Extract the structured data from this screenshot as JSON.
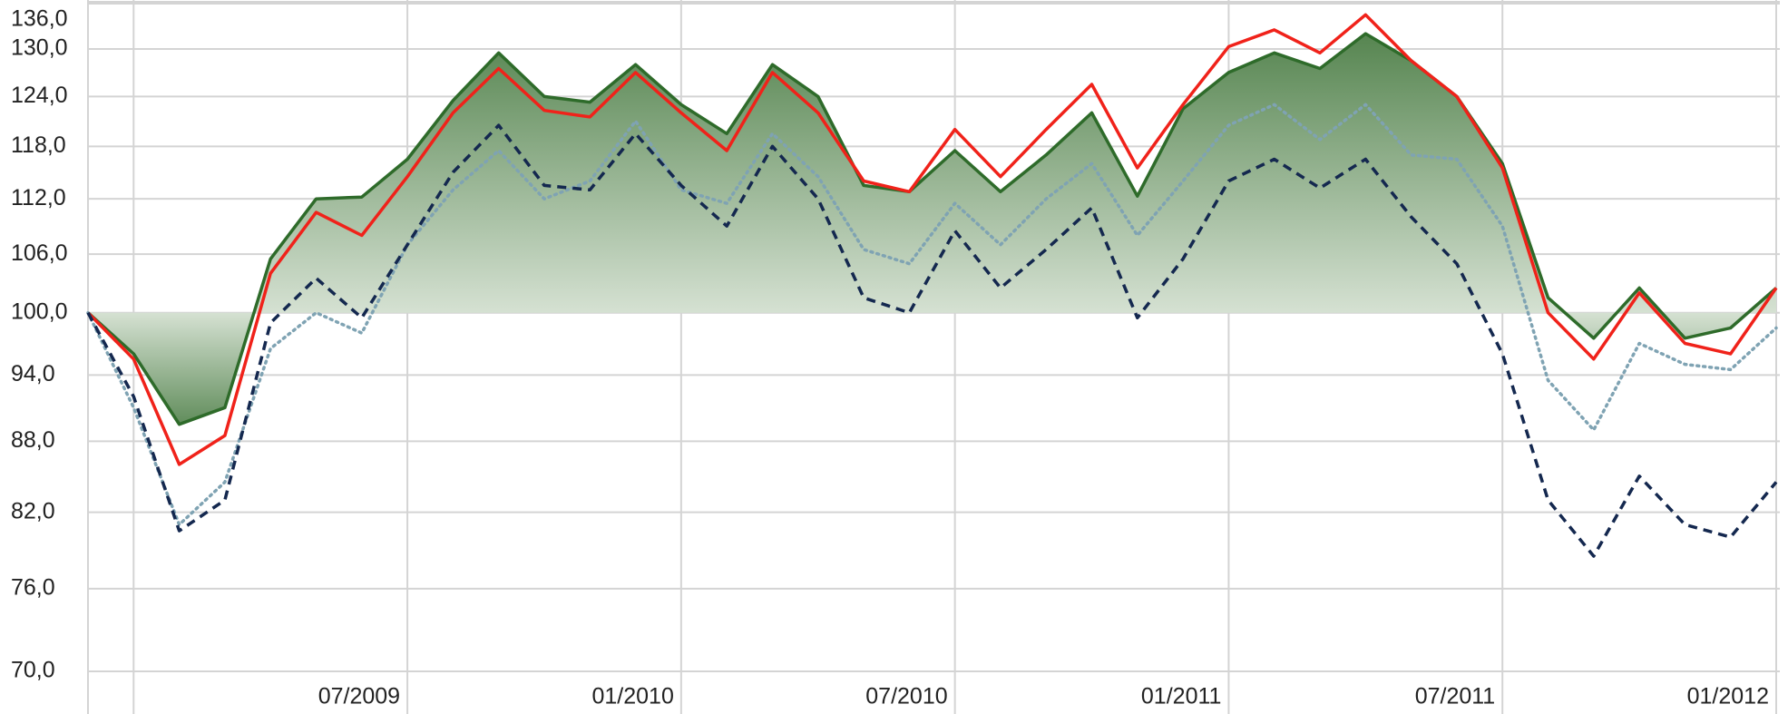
{
  "chart_data": {
    "type": "line",
    "log_y": true,
    "grid": true,
    "categories": [
      null,
      null,
      null,
      null,
      null,
      null,
      null,
      "07/2009",
      null,
      null,
      null,
      null,
      null,
      "01/2010",
      null,
      null,
      null,
      null,
      null,
      "07/2010",
      null,
      null,
      null,
      null,
      null,
      "01/2011",
      null,
      null,
      null,
      null,
      null,
      "07/2011",
      null,
      null,
      null,
      null,
      null,
      "01/2012"
    ],
    "ylim": [
      70,
      136
    ],
    "yticks": [
      {
        "value": 70,
        "label": "70,0"
      },
      {
        "value": 76,
        "label": "76,0"
      },
      {
        "value": 82,
        "label": "82,0"
      },
      {
        "value": 88,
        "label": "88,0"
      },
      {
        "value": 94,
        "label": "94,0"
      },
      {
        "value": 100,
        "label": "100,0"
      },
      {
        "value": 106,
        "label": "106,0"
      },
      {
        "value": 112,
        "label": "112,0"
      },
      {
        "value": 118,
        "label": "118,0"
      },
      {
        "value": 124,
        "label": "124,0"
      },
      {
        "value": 130,
        "label": "130,0"
      },
      {
        "value": 136,
        "label": "136,0"
      }
    ],
    "area_base": 100,
    "series": [
      {
        "color": "#2e6b2a",
        "style": "area",
        "values": [
          100,
          96,
          89.5,
          91,
          105.5,
          112,
          112.2,
          116.5,
          123.5,
          129.5,
          124,
          123.3,
          128,
          123,
          119.5,
          128,
          124,
          113.5,
          112.8,
          117.5,
          112.8,
          117,
          122,
          112.3,
          122.5,
          127,
          129.5,
          127.5,
          132,
          128.5,
          124,
          116,
          101.5,
          97.5,
          102.5,
          97.5,
          98.5,
          102.5
        ]
      },
      {
        "color": "#f0221a",
        "style": "solid",
        "values": [
          100,
          95.5,
          86,
          88.5,
          104,
          110.5,
          108,
          114.5,
          122,
          127.5,
          122.3,
          121.5,
          127,
          122,
          117.5,
          127,
          122,
          114,
          112.8,
          120,
          114.5,
          120,
          125.5,
          115.5,
          123,
          130.3,
          132.5,
          129.5,
          134.5,
          128.5,
          124,
          115.5,
          100,
          95.5,
          102,
          97,
          96,
          102.5
        ]
      },
      {
        "color": "#7fa3b3",
        "style": "dotted",
        "values": [
          100,
          91,
          81,
          84.5,
          96.5,
          100,
          98,
          107,
          113,
          117.5,
          112,
          114,
          121,
          113,
          111.5,
          119.5,
          114.5,
          106.5,
          105,
          111.5,
          107,
          112,
          116,
          108,
          114,
          120.5,
          123,
          118.8,
          123,
          117,
          116.5,
          109,
          93.5,
          89,
          97,
          95,
          94.5,
          98.5
        ]
      },
      {
        "color": "#14284f",
        "style": "dashed",
        "values": [
          100,
          92,
          80.5,
          83,
          99,
          103.5,
          99.5,
          107,
          115,
          120.5,
          113.5,
          113,
          119.5,
          113.5,
          109,
          118,
          112,
          101.5,
          100,
          108.5,
          102.5,
          106.5,
          111,
          99.5,
          105.5,
          114,
          116.5,
          113.2,
          116.5,
          110,
          105,
          96,
          83,
          78.5,
          85,
          81,
          80,
          84.5
        ]
      }
    ]
  }
}
